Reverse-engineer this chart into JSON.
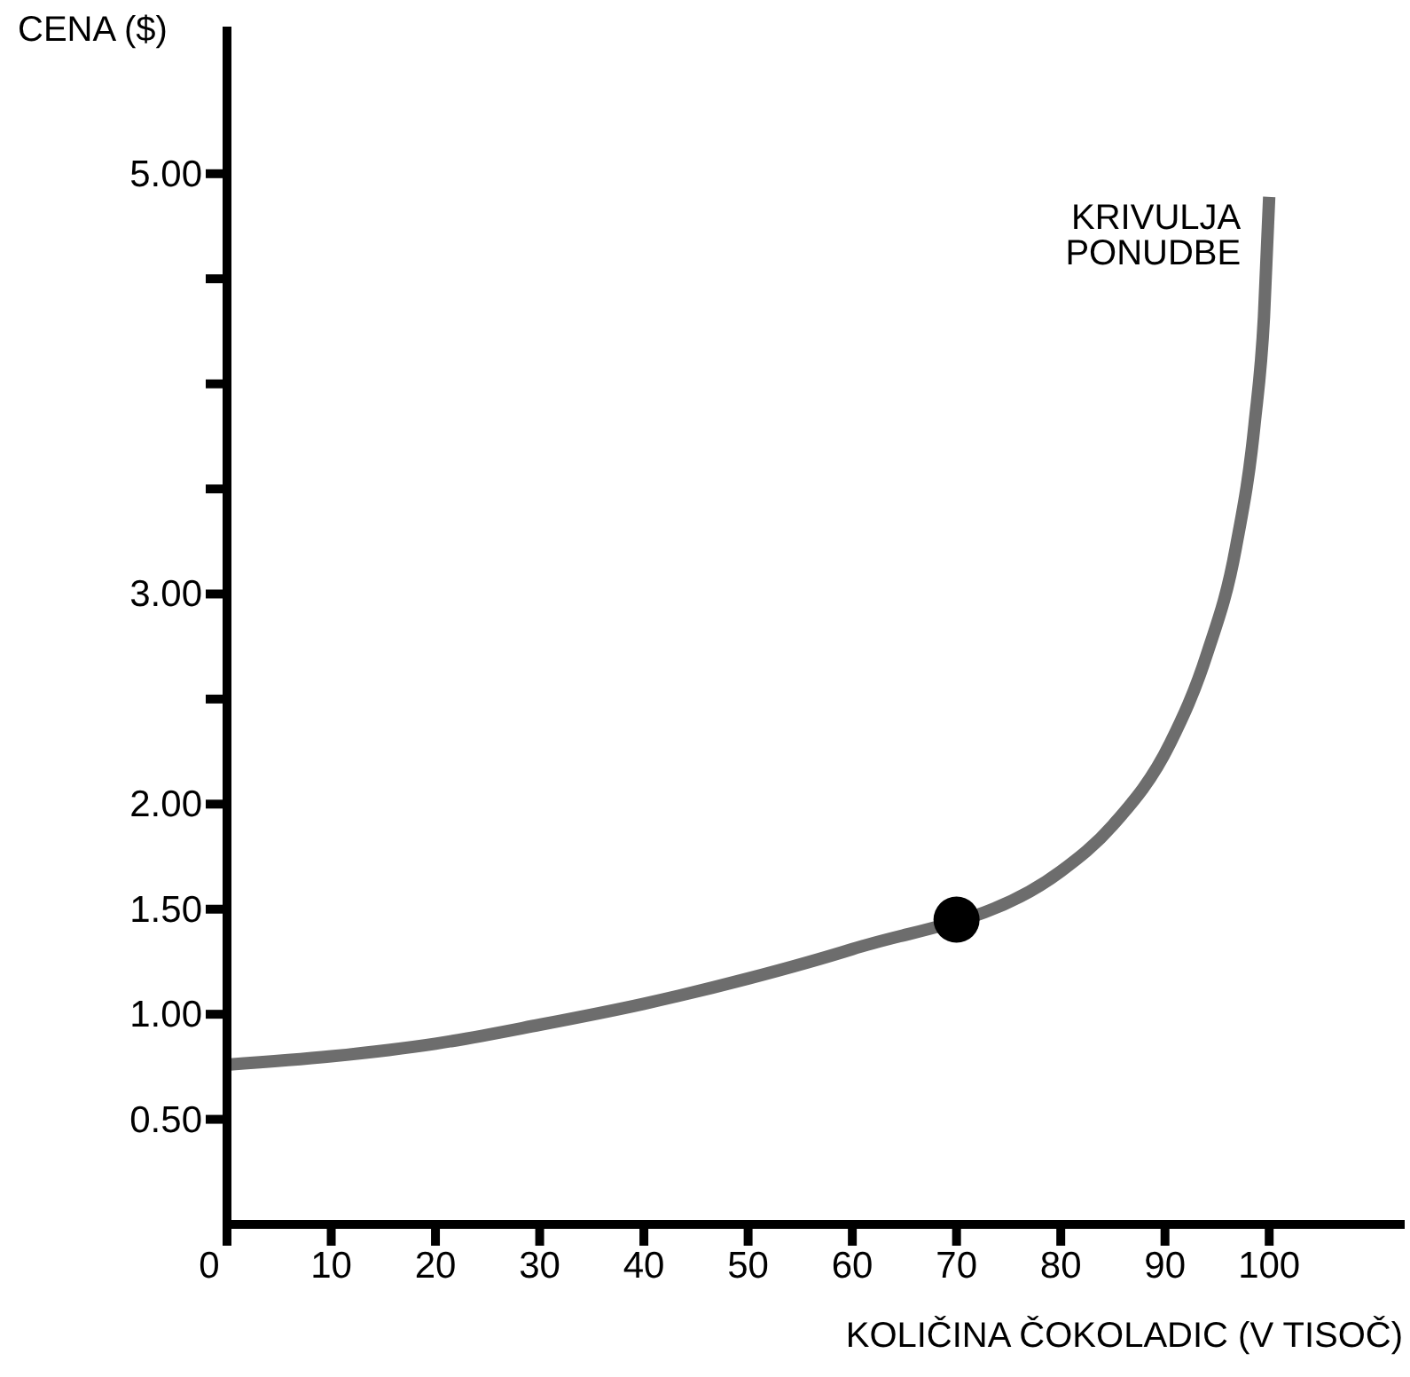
{
  "chart_data": {
    "type": "line",
    "xlabel": "KOLIČINA ČOKOLADIC (V TISOČ)",
    "ylabel": "CENA ($)",
    "xlim": [
      0,
      113
    ],
    "xticks": [
      0,
      10,
      20,
      30,
      40,
      50,
      60,
      70,
      80,
      90,
      100
    ],
    "ylim": [
      0,
      5.7
    ],
    "yticks": [
      {
        "value": 0.5,
        "label": "0.50"
      },
      {
        "value": 1,
        "label": "1.00"
      },
      {
        "value": 1.5,
        "label": "1.50"
      },
      {
        "value": 2,
        "label": "2.00"
      },
      {
        "value": 2.5,
        "label": null
      },
      {
        "value": 3,
        "label": "3.00"
      },
      {
        "value": 3.5,
        "label": null
      },
      {
        "value": 4,
        "label": null
      },
      {
        "value": 4.5,
        "label": null
      },
      {
        "value": 5,
        "label": "5.00"
      }
    ],
    "grid": false,
    "legend": false,
    "series": [
      {
        "name": "KRIVULJA PONUDBE",
        "color": "#6d6d6d",
        "x": [
          0,
          10,
          20,
          30,
          40,
          50,
          60,
          80,
          85,
          90.5,
          94,
          96.8,
          98.6,
          99.5,
          100
        ],
        "values": [
          0.76,
          0.8,
          0.86,
          0.95,
          1.05,
          1.17,
          1.31,
          1.68,
          1.9,
          2.29,
          2.71,
          3.22,
          3.81,
          4.32,
          4.89
        ]
      },
      {
        "type": "scatter",
        "color": "#000000",
        "x": [
          70
        ],
        "values": [
          1.45
        ]
      }
    ]
  }
}
